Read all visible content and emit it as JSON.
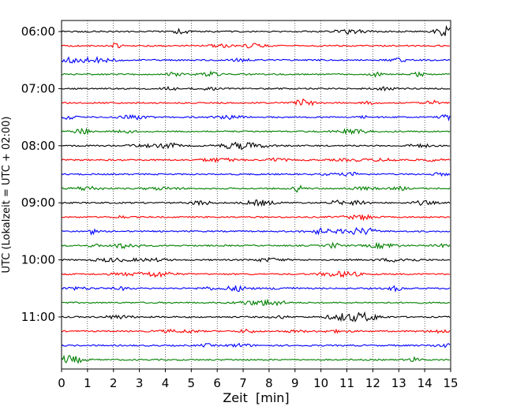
{
  "chart_data": {
    "type": "line",
    "title": "",
    "xlabel": "Zeit  [min]",
    "ylabel": "UTC (Lokalzeit = UTC + 02:00)",
    "xlim": [
      0,
      15
    ],
    "x_ticks": [
      "0",
      "1",
      "2",
      "3",
      "4",
      "5",
      "6",
      "7",
      "8",
      "9",
      "10",
      "11",
      "12",
      "13",
      "14",
      "15"
    ],
    "grid": "vertical-dotted",
    "trace_colors": [
      "#000000",
      "#ff0000",
      "#0000ff",
      "#008000"
    ],
    "trace_count": 24,
    "trace_start": "06:00",
    "trace_interval_minutes": 15,
    "hour_labels": [
      "06:00",
      "07:00",
      "08:00",
      "09:00",
      "10:00",
      "11:00"
    ]
  }
}
